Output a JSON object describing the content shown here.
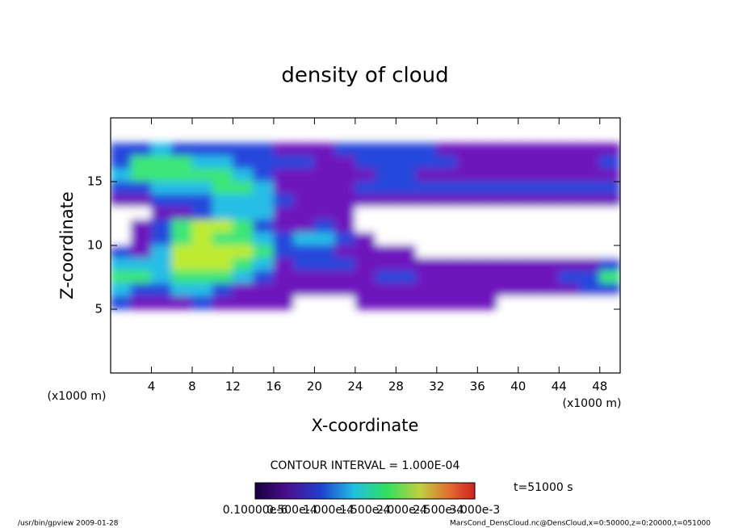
{
  "chart_data": {
    "type": "heatmap",
    "title": "density of cloud",
    "xlabel": "X-coordinate",
    "ylabel": "Z-coordinate",
    "x_unit_left": "(x1000 m)",
    "x_unit_right": "(x1000 m)",
    "xlim": [
      0,
      50
    ],
    "ylim": [
      0,
      20
    ],
    "xticks": [
      4,
      8,
      12,
      16,
      20,
      24,
      28,
      32,
      36,
      40,
      44,
      48
    ],
    "yticks": [
      5,
      10,
      15
    ],
    "x": [
      1,
      3,
      5,
      7,
      9,
      11,
      13,
      15,
      17,
      19,
      21,
      23,
      25,
      27,
      29,
      31,
      33,
      35,
      37,
      39,
      41,
      43,
      45,
      47,
      49
    ],
    "y": [
      17.5,
      16.5,
      15.5,
      14.5,
      13.5,
      12.5,
      11.5,
      10.5,
      9.5,
      8.5,
      7.5,
      6.5,
      5.5
    ],
    "z": [
      [
        6e-05,
        6e-05,
        0.0001,
        6e-05,
        6e-05,
        6e-05,
        6e-05,
        6e-05,
        3e-05,
        3e-05,
        3e-05,
        6e-05,
        6e-05,
        6e-05,
        6e-05,
        6e-05,
        3e-05,
        3e-05,
        3e-05,
        3e-05,
        3e-05,
        3e-05,
        3e-05,
        3e-05,
        3e-05
      ],
      [
        6e-05,
        0.00015,
        0.00015,
        0.00015,
        0.0001,
        0.0001,
        6e-05,
        6e-05,
        6e-05,
        6e-05,
        3e-05,
        3e-05,
        6e-05,
        6e-05,
        6e-05,
        6e-05,
        6e-05,
        3e-05,
        3e-05,
        3e-05,
        3e-05,
        3e-05,
        3e-05,
        3e-05,
        6e-05
      ],
      [
        0.0001,
        0.00015,
        0.00015,
        0.00015,
        0.00015,
        0.00015,
        0.0001,
        6e-05,
        3e-05,
        3e-05,
        3e-05,
        3e-05,
        3e-05,
        6e-05,
        6e-05,
        3e-05,
        3e-05,
        3e-05,
        3e-05,
        3e-05,
        3e-05,
        3e-05,
        3e-05,
        3e-05,
        3e-05
      ],
      [
        6e-05,
        6e-05,
        0.0001,
        0.0001,
        0.0001,
        0.00015,
        0.00015,
        0.0001,
        3e-05,
        3e-05,
        3e-05,
        3e-05,
        6e-05,
        6e-05,
        6e-05,
        6e-05,
        6e-05,
        6e-05,
        6e-05,
        6e-05,
        6e-05,
        6e-05,
        6e-05,
        6e-05,
        6e-05
      ],
      [
        3e-05,
        3e-05,
        6e-05,
        6e-05,
        6e-05,
        0.0001,
        0.0001,
        0.0001,
        6e-05,
        3e-05,
        3e-05,
        3e-05,
        3e-05,
        3e-05,
        3e-05,
        3e-05,
        3e-05,
        3e-05,
        3e-05,
        3e-05,
        3e-05,
        3e-05,
        3e-05,
        3e-05,
        3e-05
      ],
      [
        0,
        0,
        3e-05,
        3e-05,
        6e-05,
        0.0001,
        0.0001,
        0.0001,
        3e-05,
        3e-05,
        3e-05,
        3e-05,
        0,
        0,
        0,
        0,
        0,
        0,
        0,
        0,
        0,
        0,
        0,
        0,
        0
      ],
      [
        0,
        3e-05,
        6e-05,
        0.00015,
        0.00022,
        0.00022,
        0.00015,
        6e-05,
        3e-05,
        3e-05,
        6e-05,
        3e-05,
        0,
        0,
        0,
        0,
        0,
        0,
        0,
        0,
        0,
        0,
        0,
        0,
        0
      ],
      [
        0,
        3e-05,
        6e-05,
        0.00015,
        0.00022,
        0.00015,
        0.00015,
        0.0001,
        6e-05,
        0.0001,
        0.0001,
        6e-05,
        3e-05,
        0,
        0,
        0,
        0,
        0,
        0,
        0,
        0,
        0,
        0,
        0,
        0
      ],
      [
        6e-05,
        3e-05,
        0.0001,
        0.00022,
        0.00022,
        0.00022,
        0.00022,
        0.00015,
        6e-05,
        6e-05,
        6e-05,
        3e-05,
        3e-05,
        3e-05,
        3e-05,
        0,
        0,
        0,
        0,
        0,
        0,
        0,
        0,
        0,
        0
      ],
      [
        0.0001,
        0.0001,
        0.0001,
        0.00022,
        0.00022,
        0.00022,
        0.00015,
        0.0001,
        3e-05,
        6e-05,
        6e-05,
        6e-05,
        3e-05,
        3e-05,
        3e-05,
        3e-05,
        3e-05,
        3e-05,
        3e-05,
        3e-05,
        3e-05,
        3e-05,
        3e-05,
        3e-05,
        6e-05
      ],
      [
        0.00015,
        0.00015,
        0.0001,
        0.00015,
        0.00015,
        0.00015,
        0.0001,
        6e-05,
        3e-05,
        3e-05,
        3e-05,
        3e-05,
        3e-05,
        6e-05,
        6e-05,
        3e-05,
        3e-05,
        3e-05,
        3e-05,
        3e-05,
        3e-05,
        3e-05,
        6e-05,
        6e-05,
        0.00015
      ],
      [
        0.0001,
        6e-05,
        6e-05,
        0.0001,
        0.0001,
        6e-05,
        3e-05,
        3e-05,
        3e-05,
        3e-05,
        3e-05,
        3e-05,
        3e-05,
        3e-05,
        3e-05,
        3e-05,
        3e-05,
        3e-05,
        3e-05,
        3e-05,
        3e-05,
        3e-05,
        3e-05,
        6e-05,
        6e-05
      ],
      [
        6e-05,
        3e-05,
        3e-05,
        3e-05,
        6e-05,
        3e-05,
        3e-05,
        3e-05,
        3e-05,
        0,
        0,
        0,
        3e-05,
        3e-05,
        3e-05,
        3e-05,
        3e-05,
        3e-05,
        3e-05,
        0,
        0,
        0,
        0,
        0,
        0
      ]
    ],
    "contour_interval": "CONTOUR INTERVAL = 1.000E-04",
    "time_label": "t=51000 s",
    "colorbar_labels": [
      "0.10000e-6",
      "0.500e-4",
      "1.000e-4",
      "1.500e-4",
      "2.000e-4",
      "2.500e-4",
      "3.000e-3"
    ],
    "footer_left": "/usr/bin/gpview  2009-01-28",
    "footer_right": "MarsCond_DensCloud.nc@DensCloud,x=0:50000,z=0:20000,t=051000"
  }
}
